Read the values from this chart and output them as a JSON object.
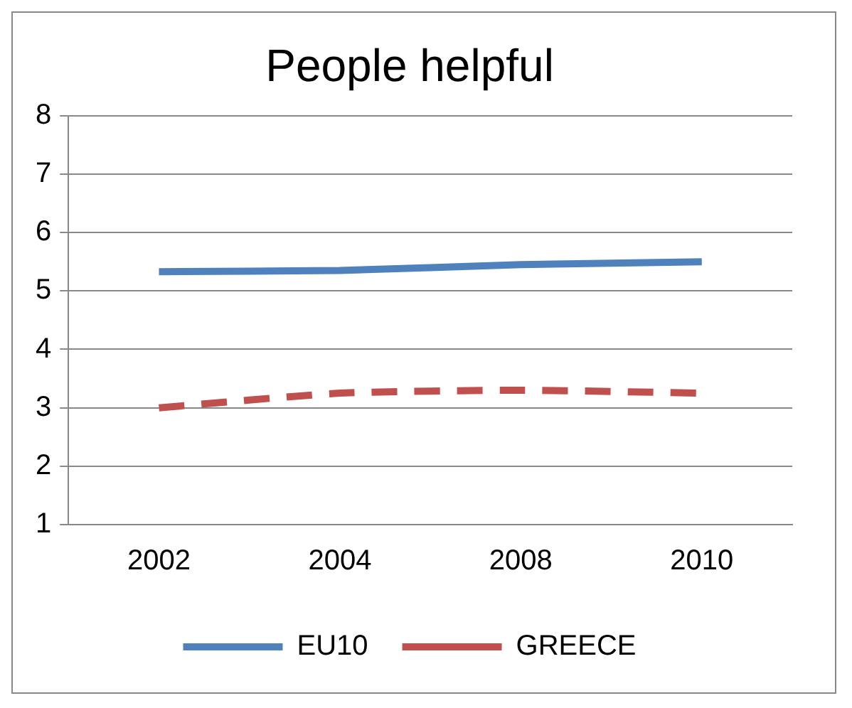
{
  "chart_data": {
    "type": "line",
    "title": "People helpful",
    "categories": [
      "2002",
      "2004",
      "2008",
      "2010"
    ],
    "series": [
      {
        "name": "EU10",
        "color": "#4f81bd",
        "values": [
          5.33,
          5.35,
          5.45,
          5.5
        ],
        "line_style": "solid"
      },
      {
        "name": "GREECE",
        "color": "#c0504d",
        "values": [
          3.0,
          3.25,
          3.3,
          3.25
        ],
        "line_style": "dashed"
      }
    ],
    "ylim": [
      1,
      8
    ],
    "yticks": [
      1,
      2,
      3,
      4,
      5,
      6,
      7,
      8
    ],
    "grid": "y",
    "legend": "bottom"
  }
}
